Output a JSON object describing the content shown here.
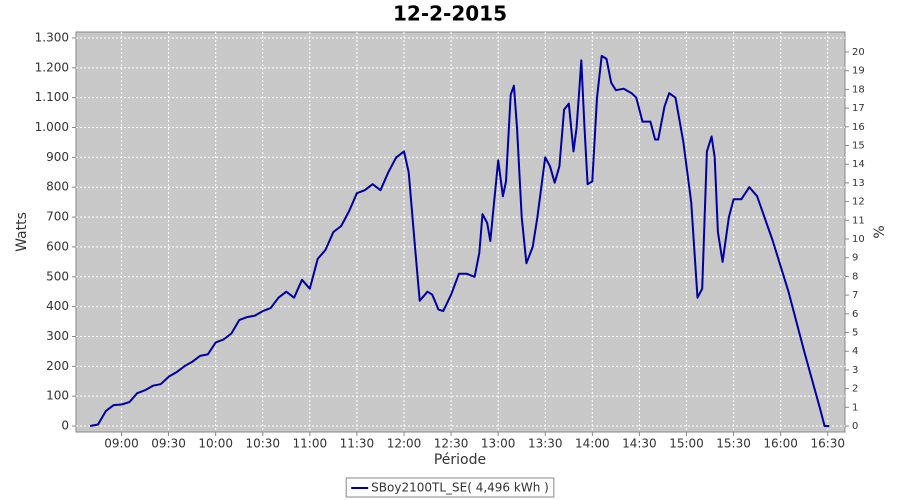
{
  "chart_data": {
    "type": "line",
    "title": "12-2-2015",
    "x_label": "Période",
    "y_label": "Watts",
    "y2_label": "%",
    "x": [
      "08:40",
      "08:45",
      "08:50",
      "08:55",
      "09:00",
      "09:05",
      "09:10",
      "09:15",
      "09:20",
      "09:25",
      "09:30",
      "09:35",
      "09:40",
      "09:45",
      "09:50",
      "09:55",
      "10:00",
      "10:05",
      "10:10",
      "10:15",
      "10:20",
      "10:25",
      "10:30",
      "10:35",
      "10:40",
      "10:45",
      "10:50",
      "10:55",
      "11:00",
      "11:05",
      "11:10",
      "11:15",
      "11:20",
      "11:25",
      "11:30",
      "11:35",
      "11:40",
      "11:45",
      "11:50",
      "11:55",
      "12:00",
      "12:03",
      "12:07",
      "12:10",
      "12:15",
      "12:18",
      "12:22",
      "12:25",
      "12:30",
      "12:35",
      "12:40",
      "12:45",
      "12:48",
      "12:50",
      "12:53",
      "12:55",
      "13:00",
      "13:03",
      "13:05",
      "13:08",
      "13:10",
      "13:12",
      "13:15",
      "13:18",
      "13:22",
      "13:25",
      "13:30",
      "13:33",
      "13:36",
      "13:39",
      "13:42",
      "13:45",
      "13:48",
      "13:50",
      "13:52",
      "13:53",
      "13:55",
      "13:57",
      "14:00",
      "14:03",
      "14:06",
      "14:09",
      "14:12",
      "14:15",
      "14:20",
      "14:25",
      "14:28",
      "14:32",
      "14:37",
      "14:40",
      "14:42",
      "14:46",
      "14:49",
      "14:53",
      "14:58",
      "15:03",
      "15:07",
      "15:10",
      "15:13",
      "15:16",
      "15:18",
      "15:20",
      "15:23",
      "15:27",
      "15:30",
      "15:35",
      "15:40",
      "15:45",
      "15:55",
      "16:05",
      "16:15",
      "16:25",
      "16:28",
      "16:31"
    ],
    "series": [
      {
        "name": "SBoy2100TL_SE( 4,496 kWh )",
        "color": "#0000a0",
        "values": [
          0,
          5,
          50,
          70,
          72,
          80,
          110,
          120,
          135,
          140,
          165,
          180,
          200,
          215,
          235,
          240,
          280,
          290,
          310,
          355,
          365,
          370,
          385,
          395,
          430,
          450,
          430,
          490,
          460,
          560,
          590,
          650,
          670,
          720,
          780,
          790,
          810,
          790,
          850,
          900,
          920,
          850,
          600,
          420,
          450,
          440,
          390,
          385,
          440,
          510,
          510,
          500,
          580,
          710,
          680,
          620,
          890,
          770,
          820,
          1110,
          1140,
          1000,
          700,
          545,
          600,
          700,
          900,
          870,
          815,
          870,
          1060,
          1080,
          920,
          1000,
          1150,
          1225,
          1000,
          810,
          820,
          1100,
          1240,
          1230,
          1150,
          1125,
          1130,
          1115,
          1100,
          1020,
          1020,
          960,
          960,
          1070,
          1115,
          1100,
          950,
          750,
          430,
          460,
          920,
          970,
          900,
          650,
          550,
          700,
          760,
          760,
          800,
          770,
          620,
          450,
          250,
          60,
          0,
          0
        ]
      }
    ],
    "xlim": [
      "08:31",
      "16:41"
    ],
    "xticks": [
      "09:00",
      "09:30",
      "10:00",
      "10:30",
      "11:00",
      "11:30",
      "12:00",
      "12:30",
      "13:00",
      "13:30",
      "14:00",
      "14:30",
      "15:00",
      "15:30",
      "16:00",
      "16:30"
    ],
    "ylim": [
      -20,
      1320
    ],
    "yticks": [
      0,
      100,
      200,
      300,
      400,
      500,
      600,
      700,
      800,
      900,
      {
        "value": 1000,
        "label": "1.000"
      },
      {
        "value": 1100,
        "label": "1.100"
      },
      {
        "value": 1200,
        "label": "1.200"
      },
      {
        "value": 1300,
        "label": "1.300"
      }
    ],
    "y2lim": [
      -0.32,
      21.07
    ],
    "y2ticks": [
      0,
      1,
      2,
      3,
      4,
      5,
      6,
      7,
      8,
      9,
      10,
      11,
      12,
      13,
      14,
      15,
      16,
      17,
      18,
      19,
      20
    ],
    "grid": true,
    "legend": "bottom",
    "background": "#c8c8c8"
  }
}
